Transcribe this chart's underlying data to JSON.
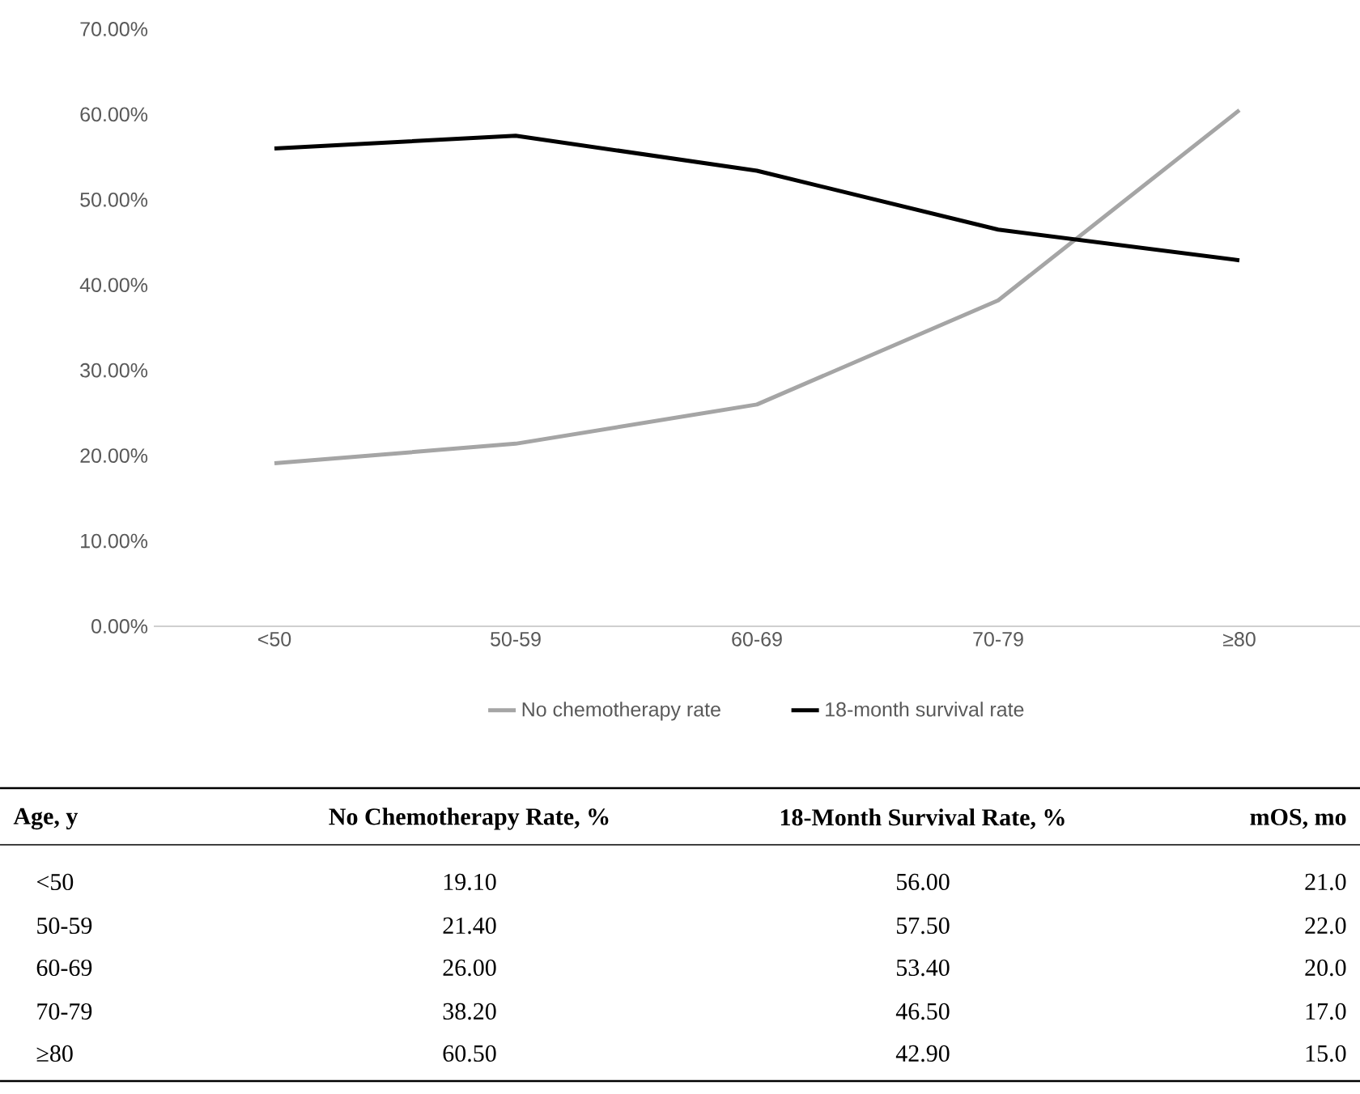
{
  "chart_data": {
    "type": "line",
    "categories": [
      "<50",
      "50-59",
      "60-69",
      "70-79",
      "≥80"
    ],
    "series": [
      {
        "name": "No chemotherapy rate",
        "color": "#a5a5a5",
        "values": [
          19.1,
          21.4,
          26.0,
          38.2,
          60.5
        ]
      },
      {
        "name": "18-month survival rate",
        "color": "#000000",
        "values": [
          56.0,
          57.5,
          53.4,
          46.5,
          42.9
        ]
      }
    ],
    "ylim": [
      0,
      70
    ],
    "yticks": [
      {
        "value": 0,
        "label": "0.00%"
      },
      {
        "value": 10,
        "label": "10.00%"
      },
      {
        "value": 20,
        "label": "20.00%"
      },
      {
        "value": 30,
        "label": "30.00%"
      },
      {
        "value": 40,
        "label": "40.00%"
      },
      {
        "value": 50,
        "label": "50.00%"
      },
      {
        "value": 60,
        "label": "60.00%"
      },
      {
        "value": 70,
        "label": "70.00%"
      }
    ],
    "legend": "bottom",
    "marker": "none",
    "line_style": "solid",
    "grid": false,
    "annotations": [
      "Age, y",
      "No Chemotherapy Rate, %",
      "18-Month Survival Rate, %",
      "mOS, mo",
      "19.10",
      "56.00",
      "21.0",
      "21.40",
      "57.50",
      "22.0",
      "26.00",
      "53.40",
      "20.0",
      "38.20",
      "46.50",
      "17.0",
      "60.50",
      "42.90",
      "15.0"
    ]
  }
}
